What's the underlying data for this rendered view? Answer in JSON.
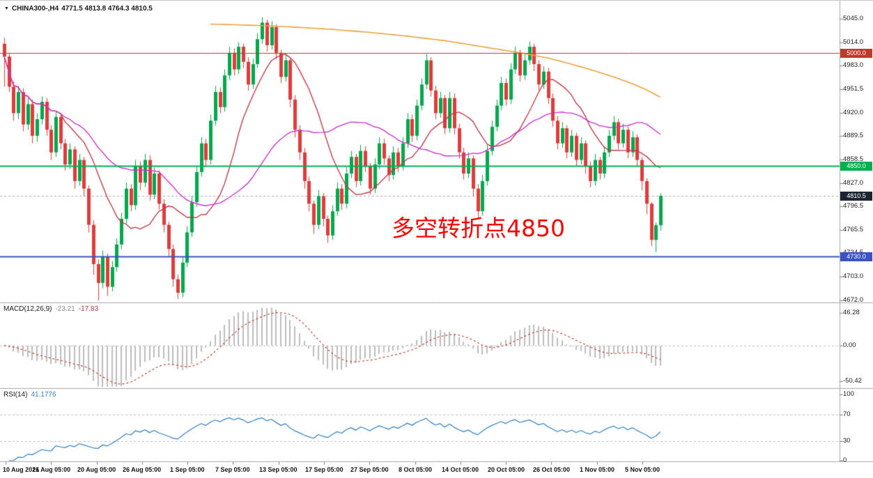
{
  "symbol_bar": {
    "arrow": "▼",
    "symbol": "CHINA300-,H4",
    "ohlc_text": "4771.5 4813.8 4764.3 4810.5"
  },
  "annotation": {
    "text": "多空转折点4850",
    "color": "#ff0000"
  },
  "price_axis": {
    "ticks": [
      "5045.0",
      "5014.0",
      "4983.0",
      "4951.5",
      "4920.0",
      "4889.5",
      "4858.5",
      "4827.0",
      "4796.5",
      "4765.5",
      "4734.5",
      "4703.0",
      "4672.0"
    ]
  },
  "time_axis": {
    "labels": [
      "10 Aug 2021",
      "16 Aug 05:00",
      "20 Aug 05:00",
      "26 Aug 05:00",
      "1 Sep 05:00",
      "7 Sep 05:00",
      "13 Sep 05:00",
      "17 Sep 05:00",
      "27 Sep 05:00",
      "8 Oct 05:00",
      "14 Oct 05:00",
      "20 Oct 05:00",
      "26 Oct 05:00",
      "1 Nov 05:00",
      "5 Nov 05:00"
    ]
  },
  "macd": {
    "label": "MACD(12,26,9)",
    "value_main": "-23.21",
    "value_signal": "-17.83",
    "axis": [
      "46.28",
      "0.00",
      "-50.42"
    ],
    "axis_values": [
      46.28,
      0,
      -50.42
    ],
    "range": [
      -50.42,
      46.28
    ],
    "histogram_color": "#bdbdbd",
    "signal_color": "#c0392b"
  },
  "rsi": {
    "label": "RSI(14)",
    "value": "41.1776",
    "axis": [
      "100",
      "70",
      "30",
      "0"
    ],
    "axis_values": [
      100,
      70,
      30,
      0
    ],
    "levels": [
      70,
      30
    ],
    "line_color": "#2f7ec7",
    "level_color": "#c0c0c0"
  },
  "chart_data": {
    "type": "candlestick",
    "title": "CHINA300-,H4",
    "symbol": "CHINA300-",
    "timeframe": "H4",
    "last_ohlc": {
      "open": 4771.5,
      "high": 4813.8,
      "low": 4764.3,
      "close": 4810.5
    },
    "price_range": [
      4672.0,
      5045.0
    ],
    "up_color": "#00a94c",
    "down_color": "#e13b3b",
    "current_price": {
      "value": 4810.5,
      "label": "4810.5",
      "label_bg": "#1b2430",
      "line_color": "#aaaaaa"
    },
    "levels": [
      {
        "price": 5000.0,
        "label": "5000.0",
        "line_color": "#c0392b",
        "label_bg": "#c0392b",
        "width": 1
      },
      {
        "price": 4850.0,
        "label": "4850.0",
        "line_color": "#00b050",
        "label_bg": "#00b050",
        "width": 2
      },
      {
        "price": 4730.0,
        "label": "4730.0",
        "line_color": "#3a53c0",
        "label_bg": "#3a53c0",
        "width": 2
      }
    ],
    "overlays": {
      "ma_fast": {
        "type": "sma",
        "period": 13,
        "color": "#c23b4b"
      },
      "ma_mid": {
        "type": "sma",
        "period": 34,
        "color": "#cc33cc"
      },
      "ma_slow": {
        "type": "points",
        "color": "#e8a33d",
        "points": [
          [
            44,
            5038
          ],
          [
            55,
            5036
          ],
          [
            62,
            5034
          ],
          [
            70,
            5031
          ],
          [
            78,
            5027
          ],
          [
            86,
            5022
          ],
          [
            94,
            5016
          ],
          [
            100,
            5010
          ],
          [
            106,
            5004
          ],
          [
            111,
            4999
          ],
          [
            116,
            4993
          ],
          [
            121,
            4985
          ],
          [
            126,
            4976
          ],
          [
            130,
            4968
          ],
          [
            134,
            4959
          ],
          [
            137,
            4951
          ],
          [
            140,
            4941
          ]
        ]
      }
    },
    "candles": [
      [
        5012,
        5020,
        4955,
        4995
      ],
      [
        4995,
        5000,
        4948,
        4955
      ],
      [
        4955,
        4962,
        4910,
        4920
      ],
      [
        4920,
        4956,
        4912,
        4948
      ],
      [
        4948,
        4953,
        4896,
        4905
      ],
      [
        4905,
        4940,
        4898,
        4932
      ],
      [
        4932,
        4938,
        4880,
        4890
      ],
      [
        4890,
        4920,
        4882,
        4912
      ],
      [
        4912,
        4942,
        4905,
        4935
      ],
      [
        4935,
        4940,
        4890,
        4898
      ],
      [
        4898,
        4904,
        4858,
        4868
      ],
      [
        4868,
        4922,
        4862,
        4915
      ],
      [
        4915,
        4920,
        4872,
        4880
      ],
      [
        4880,
        4886,
        4844,
        4852
      ],
      [
        4852,
        4880,
        4846,
        4872
      ],
      [
        4872,
        4876,
        4820,
        4830
      ],
      [
        4830,
        4866,
        4824,
        4858
      ],
      [
        4858,
        4862,
        4810,
        4820
      ],
      [
        4820,
        4824,
        4762,
        4772
      ],
      [
        4772,
        4778,
        4706,
        4720
      ],
      [
        4720,
        4726,
        4672,
        4695
      ],
      [
        4695,
        4738,
        4688,
        4730
      ],
      [
        4730,
        4734,
        4678,
        4690
      ],
      [
        4690,
        4724,
        4684,
        4716
      ],
      [
        4716,
        4754,
        4710,
        4746
      ],
      [
        4746,
        4788,
        4740,
        4780
      ],
      [
        4780,
        4828,
        4774,
        4820
      ],
      [
        4820,
        4826,
        4790,
        4798
      ],
      [
        4798,
        4858,
        4792,
        4850
      ],
      [
        4850,
        4856,
        4818,
        4828
      ],
      [
        4828,
        4866,
        4822,
        4858
      ],
      [
        4858,
        4864,
        4804,
        4812
      ],
      [
        4812,
        4848,
        4806,
        4840
      ],
      [
        4840,
        4844,
        4792,
        4800
      ],
      [
        4800,
        4806,
        4762,
        4772
      ],
      [
        4772,
        4776,
        4730,
        4740
      ],
      [
        4740,
        4746,
        4690,
        4700
      ],
      [
        4700,
        4706,
        4674,
        4682
      ],
      [
        4682,
        4730,
        4676,
        4722
      ],
      [
        4722,
        4770,
        4716,
        4762
      ],
      [
        4762,
        4810,
        4756,
        4802
      ],
      [
        4802,
        4850,
        4796,
        4842
      ],
      [
        4842,
        4888,
        4836,
        4880
      ],
      [
        4880,
        4886,
        4850,
        4858
      ],
      [
        4858,
        4918,
        4852,
        4910
      ],
      [
        4910,
        4956,
        4904,
        4948
      ],
      [
        4948,
        4954,
        4920,
        4928
      ],
      [
        4928,
        4978,
        4922,
        4970
      ],
      [
        4970,
        5008,
        4964,
        5000
      ],
      [
        5000,
        5006,
        4970,
        4978
      ],
      [
        4978,
        5014,
        4972,
        5008
      ],
      [
        5008,
        5012,
        4980,
        4988
      ],
      [
        4988,
        4994,
        4950,
        4958
      ],
      [
        4958,
        4992,
        4952,
        4985
      ],
      [
        4985,
        5026,
        4980,
        5018
      ],
      [
        5018,
        5047,
        5012,
        5040
      ],
      [
        5040,
        5044,
        5002,
        5010
      ],
      [
        5010,
        5042,
        5004,
        5034
      ],
      [
        5034,
        5038,
        4992,
        5000
      ],
      [
        5000,
        5004,
        4960,
        4968
      ],
      [
        4968,
        4998,
        4962,
        4990
      ],
      [
        4990,
        4994,
        4928,
        4938
      ],
      [
        4938,
        4944,
        4888,
        4898
      ],
      [
        4898,
        4904,
        4858,
        4868
      ],
      [
        4868,
        4874,
        4820,
        4830
      ],
      [
        4830,
        4836,
        4790,
        4800
      ],
      [
        4800,
        4804,
        4760,
        4772
      ],
      [
        4772,
        4818,
        4766,
        4810
      ],
      [
        4810,
        4814,
        4770,
        4780
      ],
      [
        4780,
        4784,
        4748,
        4758
      ],
      [
        4758,
        4798,
        4752,
        4790
      ],
      [
        4790,
        4828,
        4784,
        4820
      ],
      [
        4820,
        4826,
        4792,
        4800
      ],
      [
        4800,
        4848,
        4794,
        4840
      ],
      [
        4840,
        4870,
        4834,
        4862
      ],
      [
        4862,
        4866,
        4822,
        4830
      ],
      [
        4830,
        4878,
        4824,
        4870
      ],
      [
        4870,
        4876,
        4842,
        4850
      ],
      [
        4850,
        4854,
        4812,
        4820
      ],
      [
        4820,
        4860,
        4814,
        4852
      ],
      [
        4852,
        4888,
        4846,
        4880
      ],
      [
        4880,
        4886,
        4852,
        4860
      ],
      [
        4860,
        4864,
        4830,
        4838
      ],
      [
        4838,
        4876,
        4832,
        4868
      ],
      [
        4868,
        4874,
        4842,
        4850
      ],
      [
        4850,
        4888,
        4844,
        4880
      ],
      [
        4880,
        4920,
        4874,
        4912
      ],
      [
        4912,
        4918,
        4882,
        4890
      ],
      [
        4890,
        4938,
        4884,
        4930
      ],
      [
        4930,
        4966,
        4924,
        4958
      ],
      [
        4958,
        4998,
        4952,
        4990
      ],
      [
        4990,
        4994,
        4942,
        4950
      ],
      [
        4950,
        4956,
        4912,
        4920
      ],
      [
        4920,
        4948,
        4914,
        4940
      ],
      [
        4940,
        4944,
        4892,
        4900
      ],
      [
        4900,
        4948,
        4894,
        4940
      ],
      [
        4940,
        4946,
        4892,
        4900
      ],
      [
        4900,
        4906,
        4860,
        4868
      ],
      [
        4868,
        4874,
        4832,
        4840
      ],
      [
        4840,
        4868,
        4834,
        4860
      ],
      [
        4860,
        4864,
        4810,
        4820
      ],
      [
        4820,
        4826,
        4780,
        4790
      ],
      [
        4790,
        4838,
        4784,
        4830
      ],
      [
        4830,
        4878,
        4824,
        4870
      ],
      [
        4870,
        4910,
        4864,
        4902
      ],
      [
        4902,
        4938,
        4896,
        4930
      ],
      [
        4930,
        4968,
        4924,
        4960
      ],
      [
        4960,
        4966,
        4930,
        4938
      ],
      [
        4938,
        4986,
        4932,
        4978
      ],
      [
        4978,
        5008,
        4972,
        5000
      ],
      [
        5000,
        5004,
        4962,
        4970
      ],
      [
        4970,
        4998,
        4964,
        4990
      ],
      [
        4990,
        5015,
        4984,
        5008
      ],
      [
        5008,
        5012,
        4976,
        4985
      ],
      [
        4985,
        4990,
        4950,
        4958
      ],
      [
        4958,
        4982,
        4952,
        4975
      ],
      [
        4975,
        4980,
        4932,
        4940
      ],
      [
        4940,
        4946,
        4902,
        4910
      ],
      [
        4910,
        4916,
        4872,
        4880
      ],
      [
        4880,
        4908,
        4874,
        4900
      ],
      [
        4900,
        4904,
        4860,
        4868
      ],
      [
        4868,
        4898,
        4862,
        4890
      ],
      [
        4890,
        4894,
        4850,
        4858
      ],
      [
        4858,
        4888,
        4852,
        4880
      ],
      [
        4880,
        4884,
        4840,
        4850
      ],
      [
        4850,
        4856,
        4822,
        4830
      ],
      [
        4830,
        4866,
        4824,
        4858
      ],
      [
        4858,
        4862,
        4832,
        4840
      ],
      [
        4840,
        4876,
        4834,
        4868
      ],
      [
        4868,
        4898,
        4862,
        4890
      ],
      [
        4890,
        4916,
        4884,
        4908
      ],
      [
        4908,
        4912,
        4872,
        4880
      ],
      [
        4880,
        4906,
        4874,
        4898
      ],
      [
        4898,
        4902,
        4860,
        4868
      ],
      [
        4868,
        4896,
        4862,
        4888
      ],
      [
        4888,
        4892,
        4850,
        4858
      ],
      [
        4858,
        4862,
        4818,
        4830
      ],
      [
        4830,
        4834,
        4786,
        4800
      ],
      [
        4800,
        4802,
        4744,
        4752
      ],
      [
        4752,
        4775,
        4736,
        4771.5
      ],
      [
        4771.5,
        4813.8,
        4764.3,
        4810.5
      ]
    ]
  }
}
